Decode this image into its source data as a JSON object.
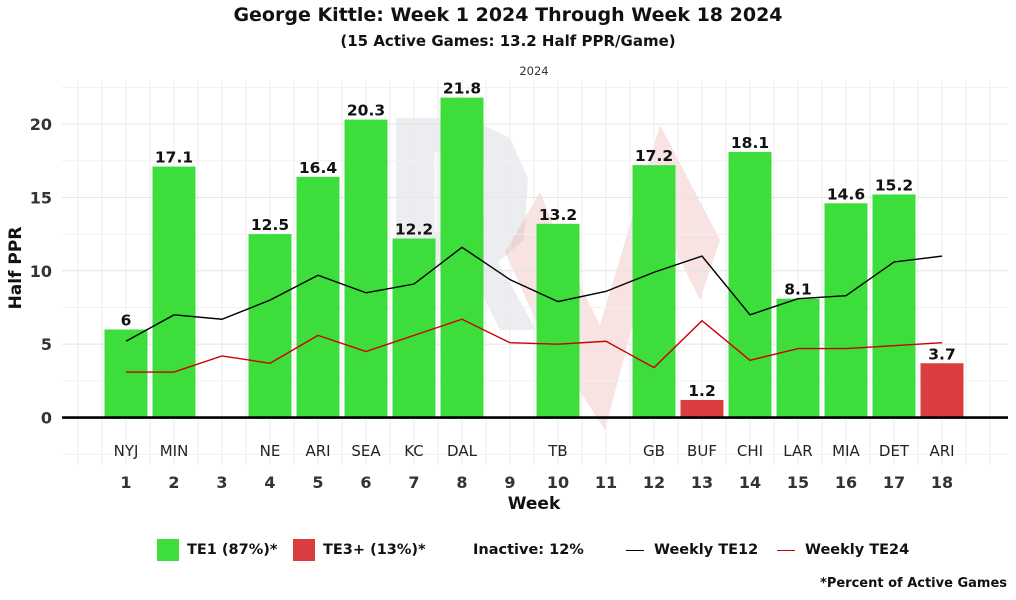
{
  "title": "George Kittle: Week 1 2024 Through Week 18 2024",
  "subtitle": "(15 Active Games: 13.2 Half PPR/Game)",
  "footnote": "*Percent of Active Games",
  "legend": {
    "te1": {
      "label": "TE1 (87%)*",
      "color": "#3ddd3b"
    },
    "te3": {
      "label": "TE3+ (13%)*",
      "color": "#d93d3d"
    },
    "inactive": {
      "label": "Inactive: 12%"
    },
    "te12": {
      "label": "Weekly TE12",
      "color": "#000000"
    },
    "te24": {
      "label": "Weekly TE24",
      "color": "#cc0000"
    }
  },
  "chart_data": {
    "type": "bar",
    "facet_label": "2024",
    "xlabel": "Week",
    "ylabel": "Half PPR",
    "ylim": [
      -3.3,
      23
    ],
    "yticks": [
      0,
      5,
      10,
      15,
      20
    ],
    "weeks": [
      1,
      2,
      3,
      4,
      5,
      6,
      7,
      8,
      9,
      10,
      11,
      12,
      13,
      14,
      15,
      16,
      17,
      18
    ],
    "opponents": [
      "NYJ",
      "MIN",
      "",
      "NE",
      "ARI",
      "SEA",
      "KC",
      "DAL",
      "",
      "TB",
      "",
      "GB",
      "BUF",
      "CHI",
      "LAR",
      "MIA",
      "DET",
      "ARI"
    ],
    "bars": [
      {
        "week": 1,
        "value": 6,
        "label": "6",
        "tier": "TE1"
      },
      {
        "week": 2,
        "value": 17.1,
        "label": "17.1",
        "tier": "TE1"
      },
      {
        "week": 4,
        "value": 12.5,
        "label": "12.5",
        "tier": "TE1"
      },
      {
        "week": 5,
        "value": 16.4,
        "label": "16.4",
        "tier": "TE1"
      },
      {
        "week": 6,
        "value": 20.3,
        "label": "20.3",
        "tier": "TE1"
      },
      {
        "week": 7,
        "value": 12.2,
        "label": "12.2",
        "tier": "TE1"
      },
      {
        "week": 8,
        "value": 21.8,
        "label": "21.8",
        "tier": "TE1"
      },
      {
        "week": 10,
        "value": 13.2,
        "label": "13.2",
        "tier": "TE1"
      },
      {
        "week": 12,
        "value": 17.2,
        "label": "17.2",
        "tier": "TE1"
      },
      {
        "week": 13,
        "value": 1.2,
        "label": "1.2",
        "tier": "TE3+"
      },
      {
        "week": 14,
        "value": 18.1,
        "label": "18.1",
        "tier": "TE1"
      },
      {
        "week": 15,
        "value": 8.1,
        "label": "8.1",
        "tier": "TE1"
      },
      {
        "week": 16,
        "value": 14.6,
        "label": "14.6",
        "tier": "TE1"
      },
      {
        "week": 17,
        "value": 15.2,
        "label": "15.2",
        "tier": "TE1"
      },
      {
        "week": 18,
        "value": 3.7,
        "label": "3.7",
        "tier": "TE3+"
      }
    ],
    "series": [
      {
        "name": "Weekly TE12",
        "color": "#000000",
        "x": [
          1,
          2,
          3,
          4,
          5,
          6,
          7,
          8,
          9,
          10,
          11,
          12,
          13,
          14,
          15,
          16,
          17,
          18
        ],
        "values": [
          5.2,
          7.0,
          6.7,
          8.0,
          9.7,
          8.5,
          9.1,
          11.6,
          9.4,
          7.9,
          8.6,
          9.9,
          11.0,
          7.0,
          8.1,
          8.3,
          10.6,
          11.0
        ]
      },
      {
        "name": "Weekly TE24",
        "color": "#cc0000",
        "x": [
          1,
          2,
          3,
          4,
          5,
          6,
          7,
          8,
          9,
          10,
          11,
          12,
          13,
          14,
          15,
          16,
          17,
          18
        ],
        "values": [
          3.1,
          3.1,
          4.2,
          3.7,
          5.6,
          4.5,
          5.6,
          6.7,
          5.1,
          5.0,
          5.2,
          3.4,
          6.6,
          3.9,
          4.7,
          4.7,
          4.9,
          5.1
        ]
      }
    ]
  }
}
